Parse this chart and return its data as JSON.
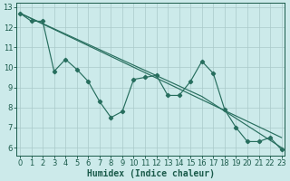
{
  "x": [
    0,
    1,
    2,
    3,
    4,
    5,
    6,
    7,
    8,
    9,
    10,
    11,
    12,
    13,
    14,
    15,
    16,
    17,
    18,
    19,
    20,
    21,
    22,
    23
  ],
  "zigzag": [
    12.7,
    12.3,
    12.3,
    9.8,
    10.4,
    9.9,
    9.3,
    8.3,
    7.5,
    7.8,
    9.4,
    9.5,
    9.6,
    8.6,
    8.6,
    9.3,
    10.3,
    9.7,
    7.9,
    7.0,
    6.3,
    6.3,
    6.5,
    5.9
  ],
  "trend1_x": [
    0,
    23
  ],
  "trend1_y": [
    12.7,
    6.5
  ],
  "trend2_x": [
    0,
    16,
    23
  ],
  "trend2_y": [
    12.7,
    8.55,
    6.0
  ],
  "ylim": [
    5.6,
    13.2
  ],
  "xlim": [
    -0.3,
    23.3
  ],
  "yticks": [
    6,
    7,
    8,
    9,
    10,
    11,
    12,
    13
  ],
  "xticks": [
    0,
    1,
    2,
    3,
    4,
    5,
    6,
    7,
    8,
    9,
    10,
    11,
    12,
    13,
    14,
    15,
    16,
    17,
    18,
    19,
    20,
    21,
    22,
    23
  ],
  "xlabel": "Humidex (Indice chaleur)",
  "line_color": "#276e5e",
  "bg_color": "#cceaea",
  "grid_color": "#aacaca",
  "font_color": "#1a5a4a",
  "tick_font_size": 6,
  "xlabel_font_size": 7
}
